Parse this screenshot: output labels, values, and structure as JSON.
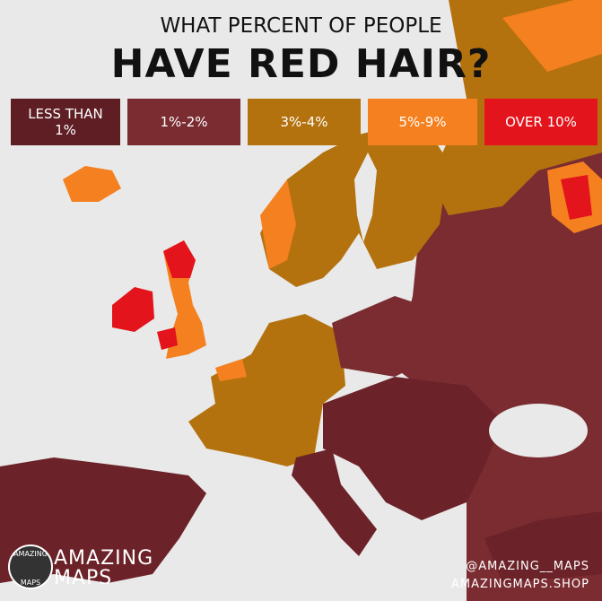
{
  "header": {
    "subtitle": "WHAT PERCENT OF PEOPLE",
    "title": "HAVE RED HAIR?"
  },
  "legend": {
    "items": [
      {
        "label": "LESS THAN 1%",
        "color": "#5e1e24"
      },
      {
        "label": "1%-2%",
        "color": "#7a2c31"
      },
      {
        "label": "3%-4%",
        "color": "#b4720f"
      },
      {
        "label": "5%-9%",
        "color": "#f5801f"
      },
      {
        "label": "OVER 10%",
        "color": "#e3141b"
      }
    ]
  },
  "logo": {
    "top": "AMAZING",
    "bottom": "MAPS"
  },
  "brand": {
    "line1": "AMAZING",
    "line2": "MAPS"
  },
  "footer": {
    "handle": "@AMAZING__MAPS",
    "site": "AMAZINGMAPS.SHOP"
  }
}
